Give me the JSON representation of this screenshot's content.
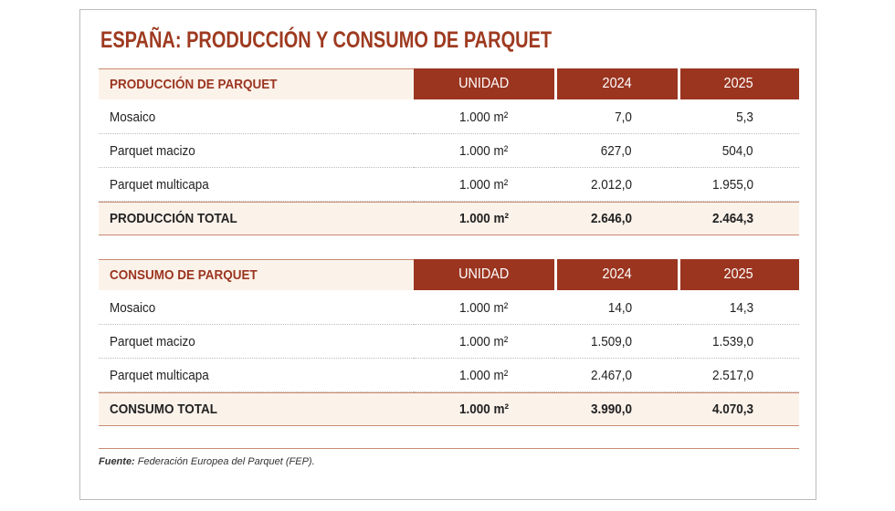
{
  "title": "ESPAÑA: PRODUCCIÓN Y CONSUMO DE PARQUET",
  "tables": [
    {
      "header": [
        "PRODUCCIÓN DE PARQUET",
        "UNIDAD",
        "2024",
        "2025"
      ],
      "rows": [
        [
          "Mosaico",
          "1.000 m²",
          "7,0",
          "5,3"
        ],
        [
          "Parquet macizo",
          "1.000 m²",
          "627,0",
          "504,0"
        ],
        [
          "Parquet multicapa",
          "1.000 m²",
          "2.012,0",
          "1.955,0"
        ]
      ],
      "total": [
        "PRODUCCIÓN TOTAL",
        "1.000 m²",
        "2.646,0",
        "2.464,3"
      ]
    },
    {
      "header": [
        "CONSUMO DE PARQUET",
        "UNIDAD",
        "2024",
        "2025"
      ],
      "rows": [
        [
          "Mosaico",
          "1.000 m²",
          "14,0",
          "14,3"
        ],
        [
          "Parquet macizo",
          "1.000 m²",
          "1.509,0",
          "1.539,0"
        ],
        [
          "Parquet multicapa",
          "1.000 m²",
          "2.467,0",
          "2.517,0"
        ]
      ],
      "total": [
        "CONSUMO TOTAL",
        "1.000 m²",
        "3.990,0",
        "4.070,3"
      ]
    }
  ],
  "source": {
    "label": "Fuente:",
    "text": "Federación Europea del Parquet (FEP)."
  }
}
